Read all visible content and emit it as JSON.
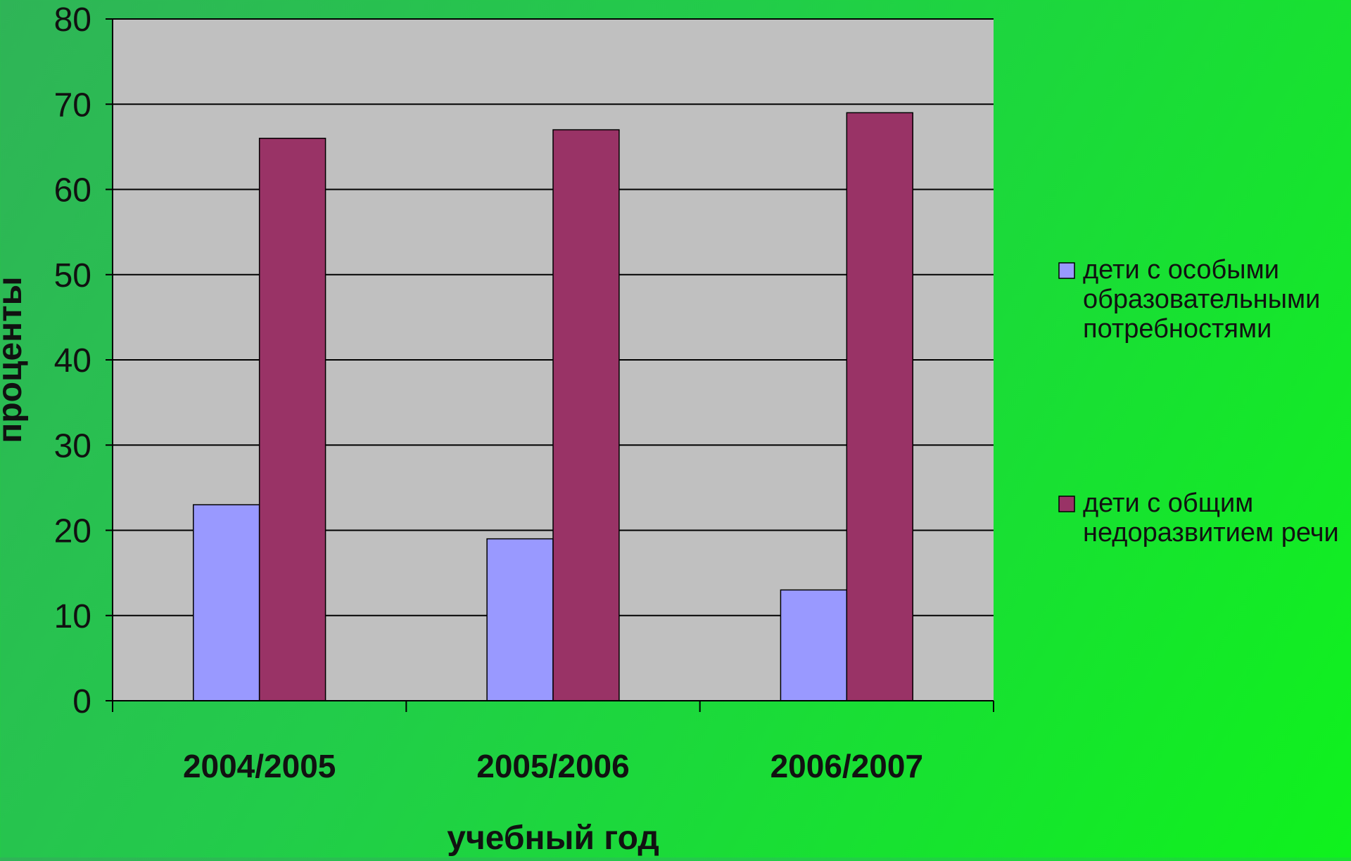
{
  "chart_data": {
    "type": "bar",
    "title": "",
    "xlabel": "учебный год",
    "ylabel": "проценты",
    "categories": [
      "2004/2005",
      "2005/2006",
      "2006/2007"
    ],
    "ylim": [
      0,
      80
    ],
    "yticks": [
      0,
      10,
      20,
      30,
      40,
      50,
      60,
      70,
      80
    ],
    "grid": true,
    "legend_position": "right",
    "series": [
      {
        "name_lines": [
          "дети с особыми",
          "образовательными",
          "потребностями"
        ],
        "color": "#9999ff",
        "values": [
          23,
          19,
          13
        ]
      },
      {
        "name_lines": [
          "дети с общим",
          "недоразвитием речи"
        ],
        "color": "#993366",
        "values": [
          66,
          67,
          69
        ]
      }
    ]
  }
}
